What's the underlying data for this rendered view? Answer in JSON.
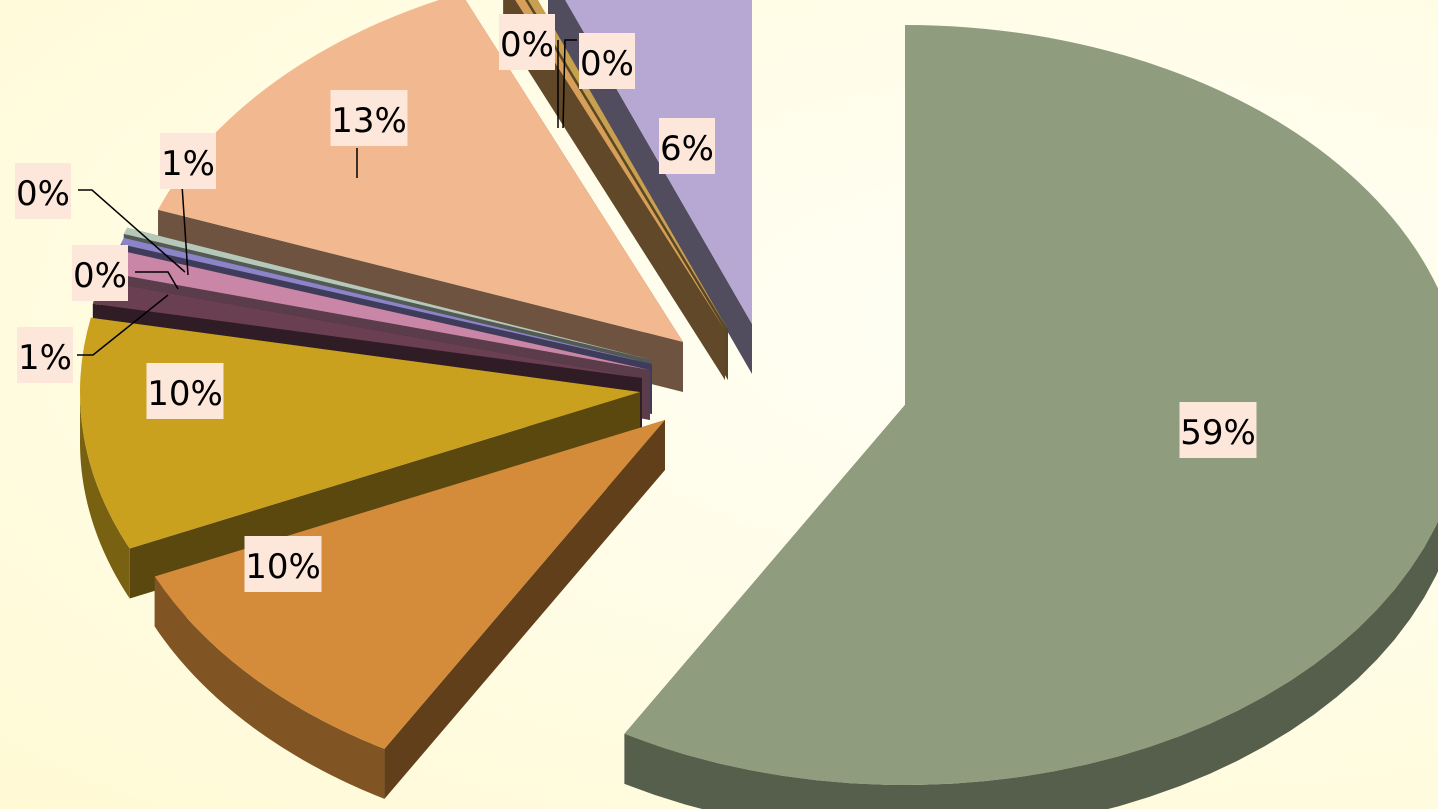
{
  "chart_data": {
    "type": "pie",
    "style": "3d-exploded",
    "legend": "none",
    "slices": [
      {
        "value": 59,
        "label": "59%",
        "color": "#8f9c7e"
      },
      {
        "value": 10,
        "label": "10%",
        "color": "#d58c3a"
      },
      {
        "value": 10,
        "label": "10%",
        "color": "#c9a11e"
      },
      {
        "value": 1,
        "label": "1%",
        "color": "#6a3f52"
      },
      {
        "value": 1,
        "label": "1%",
        "color": "#c986a6"
      },
      {
        "value": 0,
        "label": "0%",
        "color": "#8c84c8"
      },
      {
        "value": 0,
        "label": "0%",
        "color": "#b6c8b8"
      },
      {
        "value": 13,
        "label": "13%",
        "color": "#f2b88f"
      },
      {
        "value": 0,
        "label": "0%",
        "color": "#d89f5a"
      },
      {
        "value": 0,
        "label": "0%",
        "color": "#c8a050"
      },
      {
        "value": 6,
        "label": "6%",
        "color": "#b6a8d2"
      }
    ]
  }
}
